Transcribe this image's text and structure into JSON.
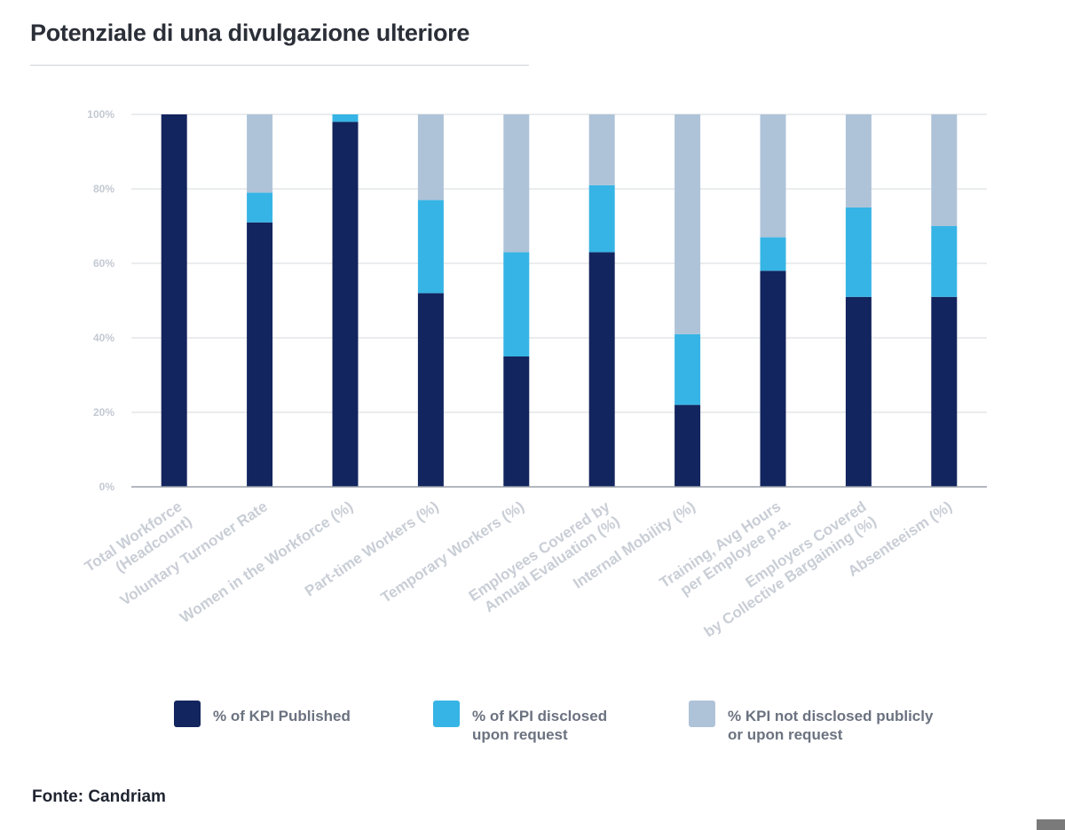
{
  "title": "Potenziale di una divulgazione ulteriore",
  "source": "Fonte: Candriam",
  "colors": {
    "published": "#13255e",
    "on_request": "#36b4e5",
    "not_disclosed": "#aec3d8",
    "grid": "#d6d9de"
  },
  "legend": [
    {
      "line1": "% of KPI Published",
      "line2": ""
    },
    {
      "line1": "% of KPI disclosed",
      "line2": "upon request"
    },
    {
      "line1": "% KPI not disclosed publicly",
      "line2": "or upon request"
    }
  ],
  "chart_data": {
    "type": "bar",
    "stacked": true,
    "categories": [
      [
        "Total Workforce",
        "(Headcount)"
      ],
      [
        "Voluntary Turnover Rate"
      ],
      [
        "Women in the Workforce (%)"
      ],
      [
        "Part-time Workers (%)"
      ],
      [
        "Temporary Workers (%)"
      ],
      [
        "Employees Covered by",
        "Annual Evaluation (%)"
      ],
      [
        "Internal Mobility (%)"
      ],
      [
        "Training, Avg Hours",
        "per Employee p.a."
      ],
      [
        "Employers Covered",
        "by Collective Bargaining (%)"
      ],
      [
        "Absenteeism (%)"
      ]
    ],
    "series": [
      {
        "name": "% of KPI Published",
        "values": [
          100,
          71,
          98,
          52,
          35,
          63,
          22,
          58,
          51,
          51
        ]
      },
      {
        "name": "% of KPI disclosed upon request",
        "values": [
          0,
          8,
          2,
          25,
          28,
          18,
          19,
          9,
          24,
          19
        ]
      },
      {
        "name": "% KPI not disclosed publicly or upon request",
        "values": [
          0,
          21,
          0,
          23,
          37,
          19,
          59,
          33,
          25,
          30
        ]
      }
    ],
    "y_ticks": [
      "0%",
      "20%",
      "40%",
      "60%",
      "80%",
      "100%"
    ],
    "ylim": [
      0,
      100
    ],
    "grid": true,
    "legend_position": "bottom"
  }
}
